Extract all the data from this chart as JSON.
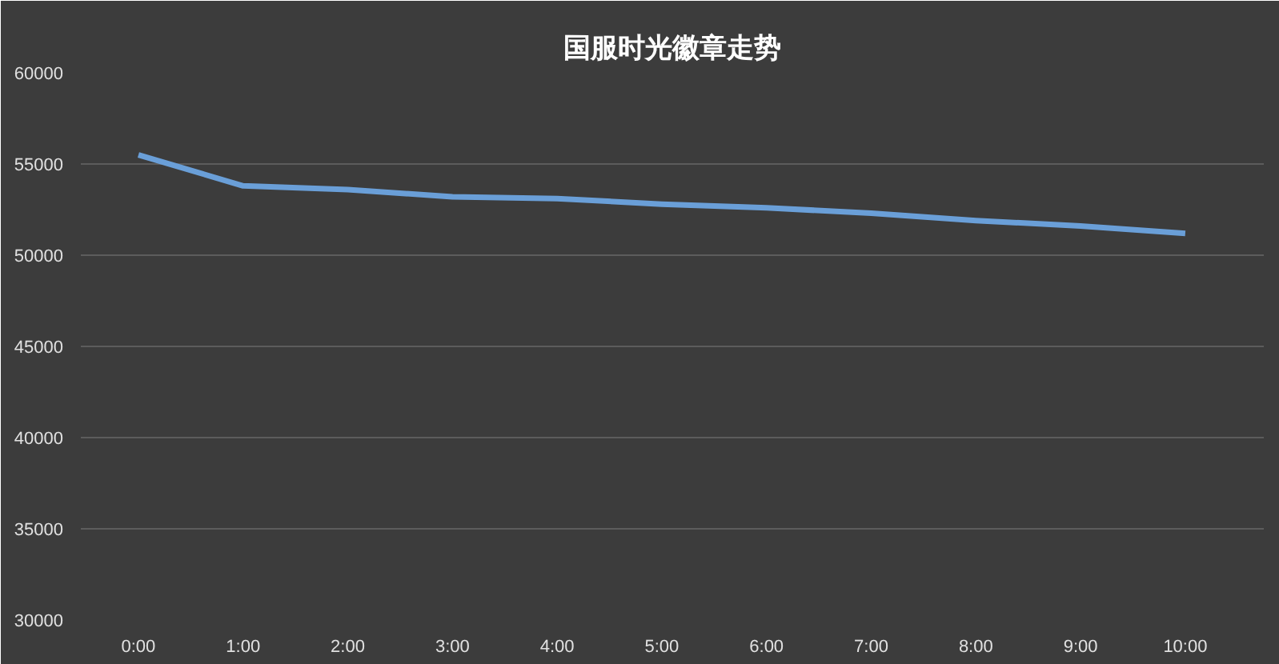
{
  "chart_data": {
    "type": "line",
    "title": "国服时光徽章走势",
    "x": [
      0,
      1,
      2,
      3,
      4,
      5,
      6,
      7,
      8,
      9,
      10
    ],
    "series": [
      {
        "color": "#6a9fd8",
        "values": [
          55500,
          53800,
          53600,
          53200,
          53100,
          52800,
          52600,
          52300,
          51900,
          51600,
          51200
        ]
      }
    ],
    "xlim": [
      -0.55,
      10.75
    ],
    "xticks": [
      {
        "value": 0,
        "label": "0:00"
      },
      {
        "value": 1,
        "label": "1:00"
      },
      {
        "value": 2,
        "label": "2:00"
      },
      {
        "value": 3,
        "label": "3:00"
      },
      {
        "value": 4,
        "label": "4:00"
      },
      {
        "value": 5,
        "label": "5:00"
      },
      {
        "value": 6,
        "label": "6:00"
      },
      {
        "value": 7,
        "label": "7:00"
      },
      {
        "value": 8,
        "label": "8:00"
      },
      {
        "value": 9,
        "label": "9:00"
      },
      {
        "value": 10,
        "label": "10:00"
      }
    ],
    "ylim": [
      30000,
      60000
    ],
    "yticks": [
      30000,
      35000,
      40000,
      45000,
      50000,
      55000,
      60000
    ],
    "grid": "y",
    "marker": "none",
    "line_style": "solid"
  }
}
